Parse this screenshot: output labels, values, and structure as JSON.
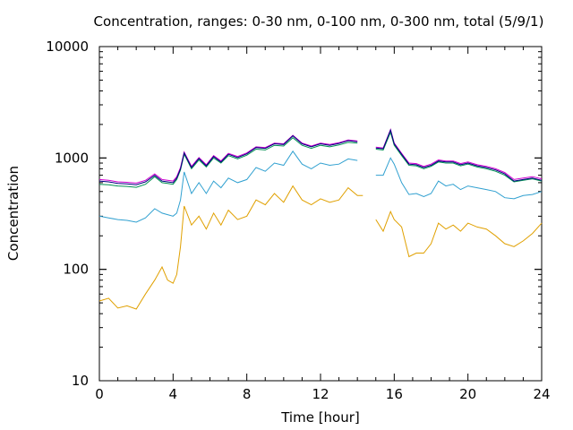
{
  "chart_data": {
    "type": "line",
    "title": "Concentration, ranges: 0-30 nm, 0-100 nm, 0-300 nm, total (5/9/1)",
    "xlabel": "Time [hour]",
    "ylabel": "Concentration",
    "xlim": [
      0,
      24
    ],
    "ylim": [
      10,
      10000
    ],
    "yscale": "log",
    "grid": false,
    "legend": "none",
    "x_ticks": [
      "0",
      "4",
      "8",
      "12",
      "16",
      "20",
      "24"
    ],
    "y_ticks": [
      "10",
      "100",
      "1000",
      "10000"
    ],
    "series": [
      {
        "color": "#e0a000",
        "points": [
          [
            0,
            52
          ],
          [
            0.5,
            55
          ],
          [
            1,
            45
          ],
          [
            1.5,
            47
          ],
          [
            2,
            44
          ],
          [
            2.5,
            60
          ],
          [
            3,
            80
          ],
          [
            3.4,
            105
          ],
          [
            3.7,
            80
          ],
          [
            4,
            75
          ],
          [
            4.2,
            90
          ],
          [
            4.4,
            160
          ],
          [
            4.6,
            370
          ],
          [
            5,
            250
          ],
          [
            5.4,
            300
          ],
          [
            5.8,
            230
          ],
          [
            6.2,
            320
          ],
          [
            6.6,
            250
          ],
          [
            7,
            340
          ],
          [
            7.5,
            280
          ],
          [
            8,
            300
          ],
          [
            8.5,
            420
          ],
          [
            9,
            380
          ],
          [
            9.5,
            480
          ],
          [
            10,
            400
          ],
          [
            10.5,
            560
          ],
          [
            11,
            420
          ],
          [
            11.5,
            380
          ],
          [
            12,
            430
          ],
          [
            12.5,
            400
          ],
          [
            13,
            420
          ],
          [
            13.5,
            540
          ],
          [
            14,
            460
          ],
          [
            14.3,
            460
          ],
          [
            15,
            280
          ],
          [
            15.4,
            220
          ],
          [
            15.8,
            330
          ],
          [
            16,
            280
          ],
          [
            16.4,
            240
          ],
          [
            16.8,
            130
          ],
          [
            17.2,
            140
          ],
          [
            17.6,
            140
          ],
          [
            18,
            170
          ],
          [
            18.4,
            260
          ],
          [
            18.8,
            230
          ],
          [
            19.2,
            250
          ],
          [
            19.6,
            220
          ],
          [
            20,
            260
          ],
          [
            20.5,
            240
          ],
          [
            21,
            230
          ],
          [
            21.5,
            200
          ],
          [
            22,
            170
          ],
          [
            22.5,
            160
          ],
          [
            23,
            180
          ],
          [
            23.5,
            210
          ],
          [
            24,
            260
          ]
        ]
      },
      {
        "color": "#30a0d0",
        "points": [
          [
            0,
            300
          ],
          [
            0.5,
            290
          ],
          [
            1,
            280
          ],
          [
            1.5,
            275
          ],
          [
            2,
            265
          ],
          [
            2.5,
            290
          ],
          [
            3,
            350
          ],
          [
            3.4,
            320
          ],
          [
            3.7,
            310
          ],
          [
            4,
            300
          ],
          [
            4.2,
            320
          ],
          [
            4.4,
            420
          ],
          [
            4.6,
            750
          ],
          [
            5,
            480
          ],
          [
            5.4,
            600
          ],
          [
            5.8,
            480
          ],
          [
            6.2,
            620
          ],
          [
            6.6,
            540
          ],
          [
            7,
            660
          ],
          [
            7.5,
            600
          ],
          [
            8,
            640
          ],
          [
            8.5,
            820
          ],
          [
            9,
            760
          ],
          [
            9.5,
            900
          ],
          [
            10,
            860
          ],
          [
            10.5,
            1150
          ],
          [
            11,
            880
          ],
          [
            11.5,
            800
          ],
          [
            12,
            900
          ],
          [
            12.5,
            860
          ],
          [
            13,
            880
          ],
          [
            13.5,
            980
          ],
          [
            14,
            950
          ],
          [
            15,
            700
          ],
          [
            15.4,
            700
          ],
          [
            15.8,
            1000
          ],
          [
            16,
            880
          ],
          [
            16.4,
            600
          ],
          [
            16.8,
            470
          ],
          [
            17.2,
            480
          ],
          [
            17.6,
            450
          ],
          [
            18,
            480
          ],
          [
            18.4,
            620
          ],
          [
            18.8,
            560
          ],
          [
            19.2,
            580
          ],
          [
            19.6,
            520
          ],
          [
            20,
            560
          ],
          [
            20.5,
            540
          ],
          [
            21,
            520
          ],
          [
            21.5,
            500
          ],
          [
            22,
            440
          ],
          [
            22.5,
            430
          ],
          [
            23,
            460
          ],
          [
            23.5,
            470
          ],
          [
            24,
            500
          ]
        ]
      },
      {
        "color": "#009050",
        "points": [
          [
            0,
            580
          ],
          [
            0.5,
            575
          ],
          [
            1,
            560
          ],
          [
            1.5,
            555
          ],
          [
            2,
            545
          ],
          [
            2.5,
            580
          ],
          [
            3,
            680
          ],
          [
            3.4,
            600
          ],
          [
            3.7,
            590
          ],
          [
            4,
            580
          ],
          [
            4.2,
            640
          ],
          [
            4.4,
            780
          ],
          [
            4.6,
            1080
          ],
          [
            5,
            800
          ],
          [
            5.4,
            960
          ],
          [
            5.8,
            830
          ],
          [
            6.2,
            1000
          ],
          [
            6.6,
            900
          ],
          [
            7,
            1050
          ],
          [
            7.5,
            980
          ],
          [
            8,
            1060
          ],
          [
            8.5,
            1200
          ],
          [
            9,
            1180
          ],
          [
            9.5,
            1300
          ],
          [
            10,
            1280
          ],
          [
            10.5,
            1520
          ],
          [
            11,
            1300
          ],
          [
            11.5,
            1220
          ],
          [
            12,
            1300
          ],
          [
            12.5,
            1260
          ],
          [
            13,
            1310
          ],
          [
            13.5,
            1380
          ],
          [
            14,
            1360
          ],
          [
            15,
            1200
          ],
          [
            15.4,
            1180
          ],
          [
            15.8,
            1700
          ],
          [
            16,
            1300
          ],
          [
            16.4,
            1050
          ],
          [
            16.8,
            860
          ],
          [
            17.2,
            850
          ],
          [
            17.6,
            800
          ],
          [
            18,
            840
          ],
          [
            18.4,
            920
          ],
          [
            18.8,
            900
          ],
          [
            19.2,
            900
          ],
          [
            19.6,
            850
          ],
          [
            20,
            880
          ],
          [
            20.5,
            830
          ],
          [
            21,
            800
          ],
          [
            21.5,
            760
          ],
          [
            22,
            700
          ],
          [
            22.5,
            610
          ],
          [
            23,
            630
          ],
          [
            23.5,
            650
          ],
          [
            24,
            620
          ]
        ]
      },
      {
        "color": "#d000d0",
        "points": [
          [
            0,
            640
          ],
          [
            0.5,
            630
          ],
          [
            1,
            610
          ],
          [
            1.5,
            605
          ],
          [
            2,
            595
          ],
          [
            2.5,
            630
          ],
          [
            3,
            720
          ],
          [
            3.4,
            640
          ],
          [
            3.7,
            630
          ],
          [
            4,
            620
          ],
          [
            4.2,
            680
          ],
          [
            4.4,
            820
          ],
          [
            4.6,
            1130
          ],
          [
            5,
            840
          ],
          [
            5.4,
            1010
          ],
          [
            5.8,
            870
          ],
          [
            6.2,
            1050
          ],
          [
            6.6,
            940
          ],
          [
            7,
            1100
          ],
          [
            7.5,
            1030
          ],
          [
            8,
            1110
          ],
          [
            8.5,
            1260
          ],
          [
            9,
            1240
          ],
          [
            9.5,
            1360
          ],
          [
            10,
            1340
          ],
          [
            10.5,
            1600
          ],
          [
            11,
            1360
          ],
          [
            11.5,
            1280
          ],
          [
            12,
            1360
          ],
          [
            12.5,
            1320
          ],
          [
            13,
            1370
          ],
          [
            13.5,
            1450
          ],
          [
            14,
            1420
          ],
          [
            15,
            1250
          ],
          [
            15.4,
            1230
          ],
          [
            15.8,
            1800
          ],
          [
            16,
            1360
          ],
          [
            16.4,
            1100
          ],
          [
            16.8,
            900
          ],
          [
            17.2,
            890
          ],
          [
            17.6,
            840
          ],
          [
            18,
            880
          ],
          [
            18.4,
            960
          ],
          [
            18.8,
            940
          ],
          [
            19.2,
            940
          ],
          [
            19.6,
            890
          ],
          [
            20,
            920
          ],
          [
            20.5,
            870
          ],
          [
            21,
            840
          ],
          [
            21.5,
            800
          ],
          [
            22,
            740
          ],
          [
            22.5,
            640
          ],
          [
            23,
            660
          ],
          [
            23.5,
            680
          ],
          [
            24,
            650
          ]
        ]
      },
      {
        "color": "#000080",
        "points": [
          [
            0,
            620
          ],
          [
            0.5,
            610
          ],
          [
            1,
            590
          ],
          [
            1.5,
            585
          ],
          [
            2,
            575
          ],
          [
            2.5,
            610
          ],
          [
            3,
            700
          ],
          [
            3.4,
            620
          ],
          [
            3.7,
            610
          ],
          [
            4,
            600
          ],
          [
            4.2,
            660
          ],
          [
            4.4,
            800
          ],
          [
            4.6,
            1110
          ],
          [
            5,
            820
          ],
          [
            5.4,
            990
          ],
          [
            5.8,
            850
          ],
          [
            6.2,
            1030
          ],
          [
            6.6,
            920
          ],
          [
            7,
            1080
          ],
          [
            7.5,
            1010
          ],
          [
            8,
            1090
          ],
          [
            8.5,
            1240
          ],
          [
            9,
            1220
          ],
          [
            9.5,
            1340
          ],
          [
            10,
            1320
          ],
          [
            10.5,
            1580
          ],
          [
            11,
            1340
          ],
          [
            11.5,
            1260
          ],
          [
            12,
            1340
          ],
          [
            12.5,
            1300
          ],
          [
            13,
            1350
          ],
          [
            13.5,
            1430
          ],
          [
            14,
            1400
          ],
          [
            15,
            1230
          ],
          [
            15.4,
            1210
          ],
          [
            15.8,
            1780
          ],
          [
            16,
            1340
          ],
          [
            16.4,
            1080
          ],
          [
            16.8,
            880
          ],
          [
            17.2,
            870
          ],
          [
            17.6,
            820
          ],
          [
            18,
            860
          ],
          [
            18.4,
            940
          ],
          [
            18.8,
            920
          ],
          [
            19.2,
            920
          ],
          [
            19.6,
            870
          ],
          [
            20,
            900
          ],
          [
            20.5,
            850
          ],
          [
            21,
            820
          ],
          [
            21.5,
            780
          ],
          [
            22,
            720
          ],
          [
            22.5,
            620
          ],
          [
            23,
            640
          ],
          [
            23.5,
            660
          ],
          [
            24,
            630
          ]
        ]
      }
    ]
  }
}
